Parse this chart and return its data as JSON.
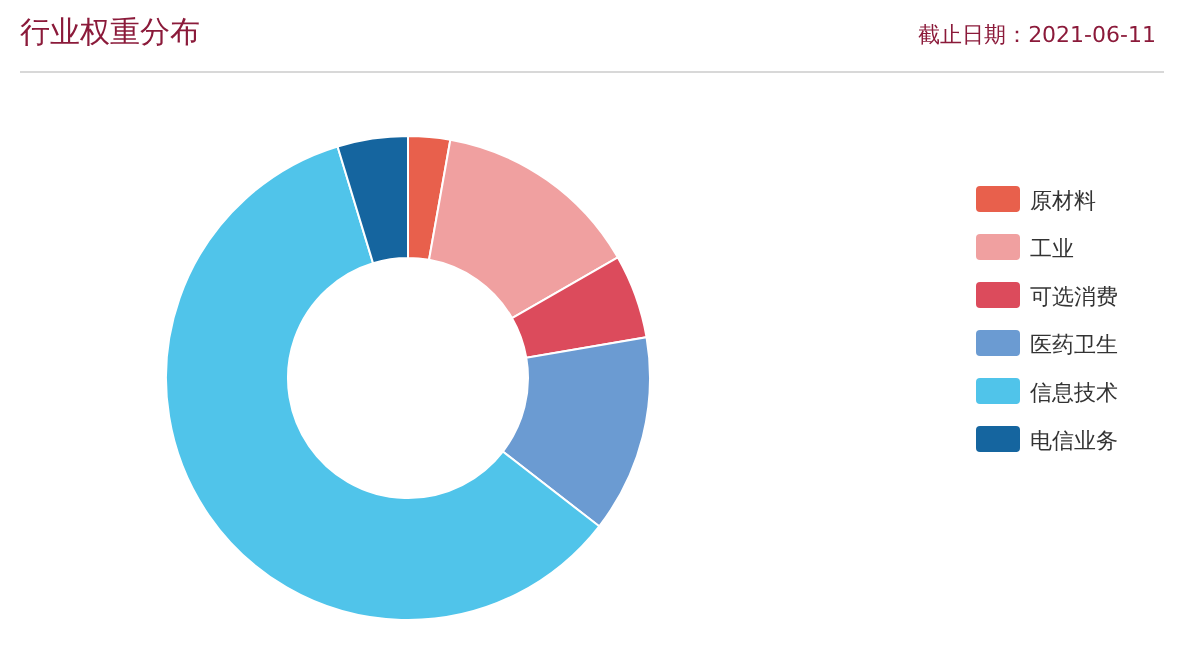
{
  "chart_data": {
    "type": "donut",
    "title": "行业权重分布",
    "subtitle": "截止日期：2021-06-11",
    "legend": "right",
    "categories": [
      "原材料",
      "工业",
      "可选消费",
      "医药卫生",
      "信息技术",
      "电信业务"
    ],
    "values": [
      2.8,
      13.9,
      5.6,
      13.2,
      59.8,
      4.7
    ],
    "colors": [
      "#e8604c",
      "#f0a0a0",
      "#dc4b5c",
      "#6b9bd2",
      "#50c4ea",
      "#15659f"
    ]
  }
}
